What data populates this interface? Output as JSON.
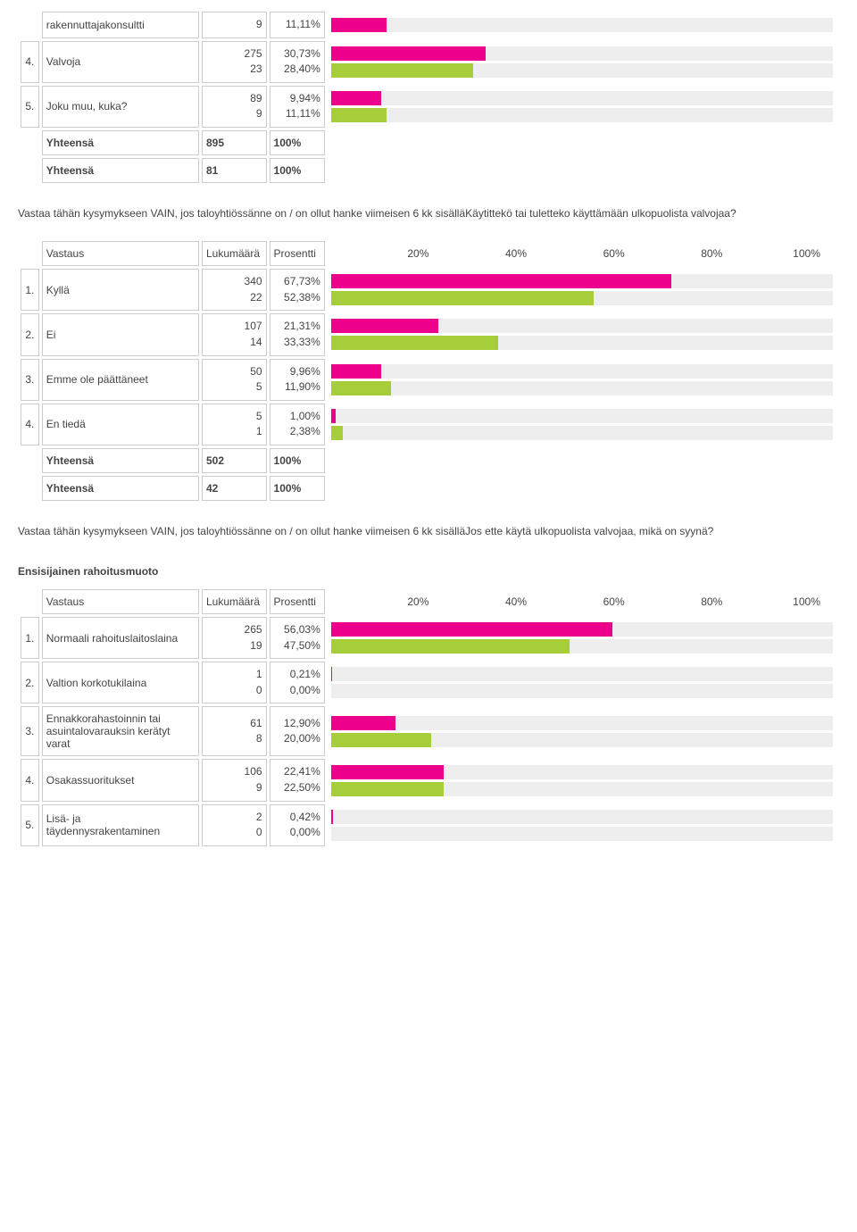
{
  "colors": {
    "series1": "#ec008c",
    "series2": "#a6ce39",
    "bar_bg": "#eeeeee",
    "cell_border": "#cccccc",
    "text": "#444444"
  },
  "chart": {
    "axis_labels": [
      "20%",
      "40%",
      "60%",
      "80%",
      "100%"
    ],
    "xmax": 100
  },
  "top": {
    "rows": [
      {
        "num": "",
        "label": "rakennuttajakonsultti",
        "v1_count": "9",
        "v1_pct": "11,11%",
        "v1_val": 11.11,
        "v2_count": "",
        "v2_pct": "",
        "v2_val": null
      },
      {
        "num": "4.",
        "label": "Valvoja",
        "v1_count": "275",
        "v1_pct": "30,73%",
        "v1_val": 30.73,
        "v2_count": "23",
        "v2_pct": "28,40%",
        "v2_val": 28.4
      },
      {
        "num": "5.",
        "label": "Joku muu, kuka?",
        "v1_count": "89",
        "v1_pct": "9,94%",
        "v1_val": 9.94,
        "v2_count": "9",
        "v2_pct": "11,11%",
        "v2_val": 11.11
      }
    ],
    "totals": [
      {
        "label": "Yhteensä",
        "count": "895",
        "pct": "100%"
      },
      {
        "label": "Yhteensä",
        "count": "81",
        "pct": "100%"
      }
    ]
  },
  "q1": {
    "text": "Vastaa tähän kysymykseen VAIN, jos taloyhtiössänne on / on ollut hanke viimeisen 6 kk sisälläKäytittekö tai tuletteko käyttämään ulkopuolista valvojaa?",
    "header": {
      "vastaus": "Vastaus",
      "lukumaara": "Lukumäärä",
      "prosentti": "Prosentti"
    },
    "rows": [
      {
        "num": "1.",
        "label": "Kyllä",
        "v1_count": "340",
        "v1_pct": "67,73%",
        "v1_val": 67.73,
        "v2_count": "22",
        "v2_pct": "52,38%",
        "v2_val": 52.38
      },
      {
        "num": "2.",
        "label": "Ei",
        "v1_count": "107",
        "v1_pct": "21,31%",
        "v1_val": 21.31,
        "v2_count": "14",
        "v2_pct": "33,33%",
        "v2_val": 33.33
      },
      {
        "num": "3.",
        "label": "Emme ole päättäneet",
        "v1_count": "50",
        "v1_pct": "9,96%",
        "v1_val": 9.96,
        "v2_count": "5",
        "v2_pct": "11,90%",
        "v2_val": 11.9
      },
      {
        "num": "4.",
        "label": "En tiedä",
        "v1_count": "5",
        "v1_pct": "1,00%",
        "v1_val": 1.0,
        "v2_count": "1",
        "v2_pct": "2,38%",
        "v2_val": 2.38
      }
    ],
    "totals": [
      {
        "label": "Yhteensä",
        "count": "502",
        "pct": "100%"
      },
      {
        "label": "Yhteensä",
        "count": "42",
        "pct": "100%"
      }
    ]
  },
  "q2_text": "Vastaa tähän kysymykseen VAIN, jos taloyhtiössänne on / on ollut hanke viimeisen 6 kk sisälläJos ette käytä ulkopuolista valvojaa, mikä on syynä?",
  "q3": {
    "title": "Ensisijainen rahoitusmuoto",
    "header": {
      "vastaus": "Vastaus",
      "lukumaara": "Lukumäärä",
      "prosentti": "Prosentti"
    },
    "rows": [
      {
        "num": "1.",
        "label": "Normaali rahoituslaitoslaina",
        "v1_count": "265",
        "v1_pct": "56,03%",
        "v1_val": 56.03,
        "v2_count": "19",
        "v2_pct": "47,50%",
        "v2_val": 47.5
      },
      {
        "num": "2.",
        "label": "Valtion korkotukilaina",
        "v1_count": "1",
        "v1_pct": "0,21%",
        "v1_val": 0.21,
        "v2_count": "0",
        "v2_pct": "0,00%",
        "v2_val": 0.0
      },
      {
        "num": "3.",
        "label": "Ennakkorahastoinnin tai asuintalovarauksin kerätyt varat",
        "v1_count": "61",
        "v1_pct": "12,90%",
        "v1_val": 12.9,
        "v2_count": "8",
        "v2_pct": "20,00%",
        "v2_val": 20.0
      },
      {
        "num": "4.",
        "label": "Osakassuoritukset",
        "v1_count": "106",
        "v1_pct": "22,41%",
        "v1_val": 22.41,
        "v2_count": "9",
        "v2_pct": "22,50%",
        "v2_val": 22.5
      },
      {
        "num": "5.",
        "label": "Lisä- ja täydennysrakentaminen",
        "v1_count": "2",
        "v1_pct": "0,42%",
        "v1_val": 0.42,
        "v2_count": "0",
        "v2_pct": "0,00%",
        "v2_val": 0.0
      }
    ]
  }
}
